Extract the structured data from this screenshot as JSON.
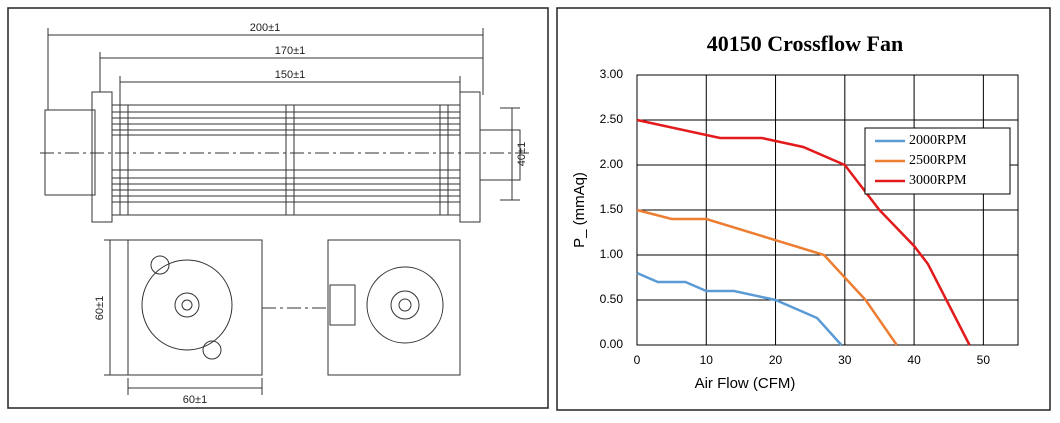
{
  "drawing": {
    "dimensions": [
      "200±1",
      "170±1",
      "150±1",
      "40±1",
      "60±1",
      "60±1"
    ]
  },
  "chart_data": {
    "type": "line",
    "title": "40150 Crossflow Fan",
    "x_label": "Air Flow (CFM)",
    "y_label": "P_ (mmAq)",
    "xlim": [
      0,
      55
    ],
    "ylim": [
      0,
      3
    ],
    "xticks": [
      0,
      10,
      20,
      30,
      40,
      50
    ],
    "yticks": [
      {
        "value": 0,
        "label": "0.00"
      },
      {
        "value": 0.5,
        "label": "0.50"
      },
      {
        "value": 1,
        "label": "1.00"
      },
      {
        "value": 1.5,
        "label": "1.50"
      },
      {
        "value": 2,
        "label": "2.00"
      },
      {
        "value": 2.5,
        "label": "2.50"
      },
      {
        "value": 3,
        "label": "3.00"
      }
    ],
    "grid": true,
    "legend": "upper right",
    "series": [
      {
        "name": "2000RPM",
        "color": "#5b9bd5",
        "x": [
          0,
          3,
          7,
          10,
          14,
          20,
          26,
          29.5
        ],
        "values": [
          0.8,
          0.7,
          0.7,
          0.6,
          0.6,
          0.5,
          0.3,
          0
        ]
      },
      {
        "name": "2500RPM",
        "color": "#ed7d31",
        "x": [
          0,
          5,
          10,
          27,
          33,
          37.5
        ],
        "values": [
          1.5,
          1.4,
          1.4,
          1.0,
          0.5,
          0
        ]
      },
      {
        "name": "3000RPM",
        "color": "#e31a1c",
        "x": [
          0,
          12,
          18,
          24,
          30,
          35,
          40,
          42,
          48
        ],
        "values": [
          2.5,
          2.3,
          2.3,
          2.2,
          2.0,
          1.5,
          1.1,
          0.9,
          0
        ]
      }
    ]
  }
}
